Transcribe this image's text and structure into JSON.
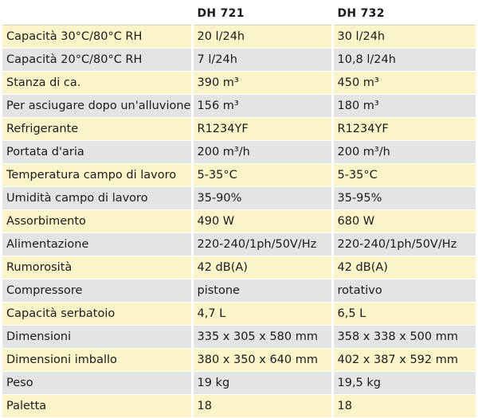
{
  "header": {
    "label": "",
    "model1": "DH 721",
    "model2": "DH 732"
  },
  "rows": [
    {
      "label": "Capacità 30°C/80°C RH",
      "m1": "20 l/24h",
      "m2": "30 l/24h"
    },
    {
      "label": "Capacità 20°C/80°C RH",
      "m1": "7 l/24h",
      "m2": "10,8 l/24h"
    },
    {
      "label": "Stanza di ca.",
      "m1": "390 m³",
      "m2": "450 m³"
    },
    {
      "label": "Per asciugare dopo un'alluvione",
      "m1": "156 m³",
      "m2": "180 m³"
    },
    {
      "label": "Refrigerante",
      "m1": "R1234YF",
      "m2": "R1234YF"
    },
    {
      "label": "Portata d'aria",
      "m1": "200 m³/h",
      "m2": "200 m³/h"
    },
    {
      "label": "Temperatura campo di lavoro",
      "m1": "5-35°C",
      "m2": "5-35°C"
    },
    {
      "label": "Umidità campo di lavoro",
      "m1": "35-90%",
      "m2": "35-95%"
    },
    {
      "label": "Assorbimento",
      "m1": "490 W",
      "m2": "680 W"
    },
    {
      "label": "Alimentazione",
      "m1": "220-240/1ph/50V/Hz",
      "m2": "220-240/1ph/50V/Hz"
    },
    {
      "label": "Rumorosità",
      "m1": "42 dB(A)",
      "m2": "42 dB(A)"
    },
    {
      "label": "Compressore",
      "m1": "pistone",
      "m2": "rotativo"
    },
    {
      "label": "Capacità serbatoio",
      "m1": "4,7 L",
      "m2": "6,5 L"
    },
    {
      "label": "Dimensioni",
      "m1": "335 x 305 x 580 mm",
      "m2": "358 x 338 x 500 mm"
    },
    {
      "label": "Dimensioni imballo",
      "m1": "380 x 350 x 640 mm",
      "m2": "402 x 387 x 592 mm"
    },
    {
      "label": "Peso",
      "m1": "19 kg",
      "m2": "19,5 kg"
    },
    {
      "label": "Paletta",
      "m1": "18",
      "m2": "18"
    }
  ],
  "colors": {
    "row_odd": "#fbf4c9",
    "row_even": "#e4e4e4"
  }
}
